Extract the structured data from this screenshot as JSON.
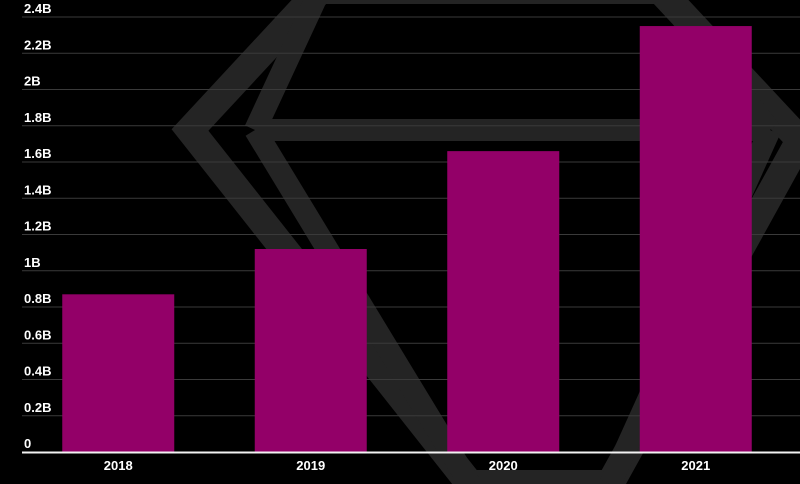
{
  "colors": {
    "background": "#000000",
    "bar": "#930068",
    "grid": "#3a3a3a",
    "axis": "#f2f2f2",
    "text": "#ffffff",
    "watermark": "#242424"
  },
  "watermark_icon": "diamond-gem-icon",
  "chart_data": {
    "type": "bar",
    "categories": [
      "2018",
      "2019",
      "2020",
      "2021"
    ],
    "values": [
      0.87,
      1.12,
      1.66,
      2.35
    ],
    "unit": "B",
    "ylim": [
      0,
      2.4
    ],
    "yticks": [
      0,
      0.2,
      0.4,
      0.6,
      0.8,
      1,
      1.2,
      1.4,
      1.6,
      1.8,
      2,
      2.2,
      2.4
    ],
    "ytick_labels": [
      "0",
      "0.2B",
      "0.4B",
      "0.6B",
      "0.8B",
      "1B",
      "1.2B",
      "1.4B",
      "1.6B",
      "1.8B",
      "2B",
      "2.2B",
      "2.4B"
    ],
    "grid": true,
    "legend": "none",
    "title": "",
    "xlabel": "",
    "ylabel": ""
  }
}
